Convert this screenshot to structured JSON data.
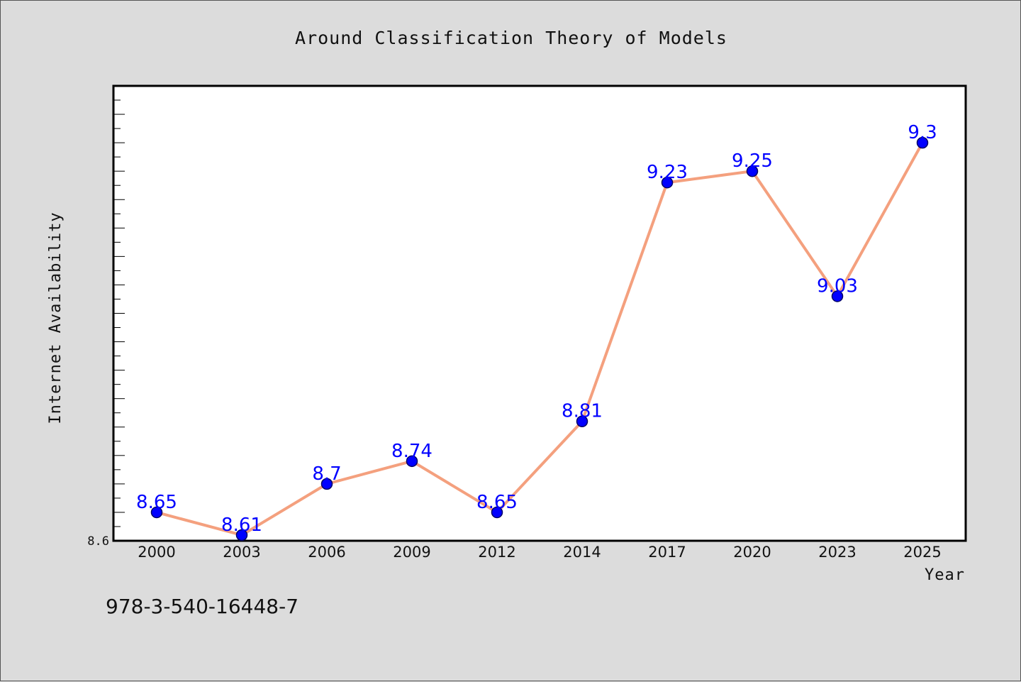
{
  "chart_data": {
    "type": "line",
    "title": "Around Classification Theory of Models",
    "xlabel": "Year",
    "ylabel": "Internet Availability",
    "categories": [
      "2000",
      "2003",
      "2006",
      "2009",
      "2012",
      "2014",
      "2017",
      "2020",
      "2023",
      "2025"
    ],
    "values": [
      8.65,
      8.61,
      8.7,
      8.74,
      8.65,
      8.81,
      9.23,
      9.25,
      9.03,
      9.3
    ],
    "data_labels": [
      "8.65",
      "8.61",
      "8.7",
      "8.74",
      "8.65",
      "8.81",
      "9.23",
      "9.25",
      "9.03",
      "9.3"
    ],
    "ylim": [
      8.6,
      9.4
    ],
    "yticks": [
      {
        "value": 8.6,
        "label": "8.6"
      }
    ],
    "grid": false,
    "legend": "none",
    "colors": {
      "line": "#f4a07e",
      "marker_fill": "#0000ff",
      "marker_edge": "#000066",
      "data_label": "#0000ff",
      "plot_background": "#ffffff",
      "figure_background": "#dcdcdc"
    }
  },
  "footer": {
    "isbn": "978-3-540-16448-7"
  }
}
